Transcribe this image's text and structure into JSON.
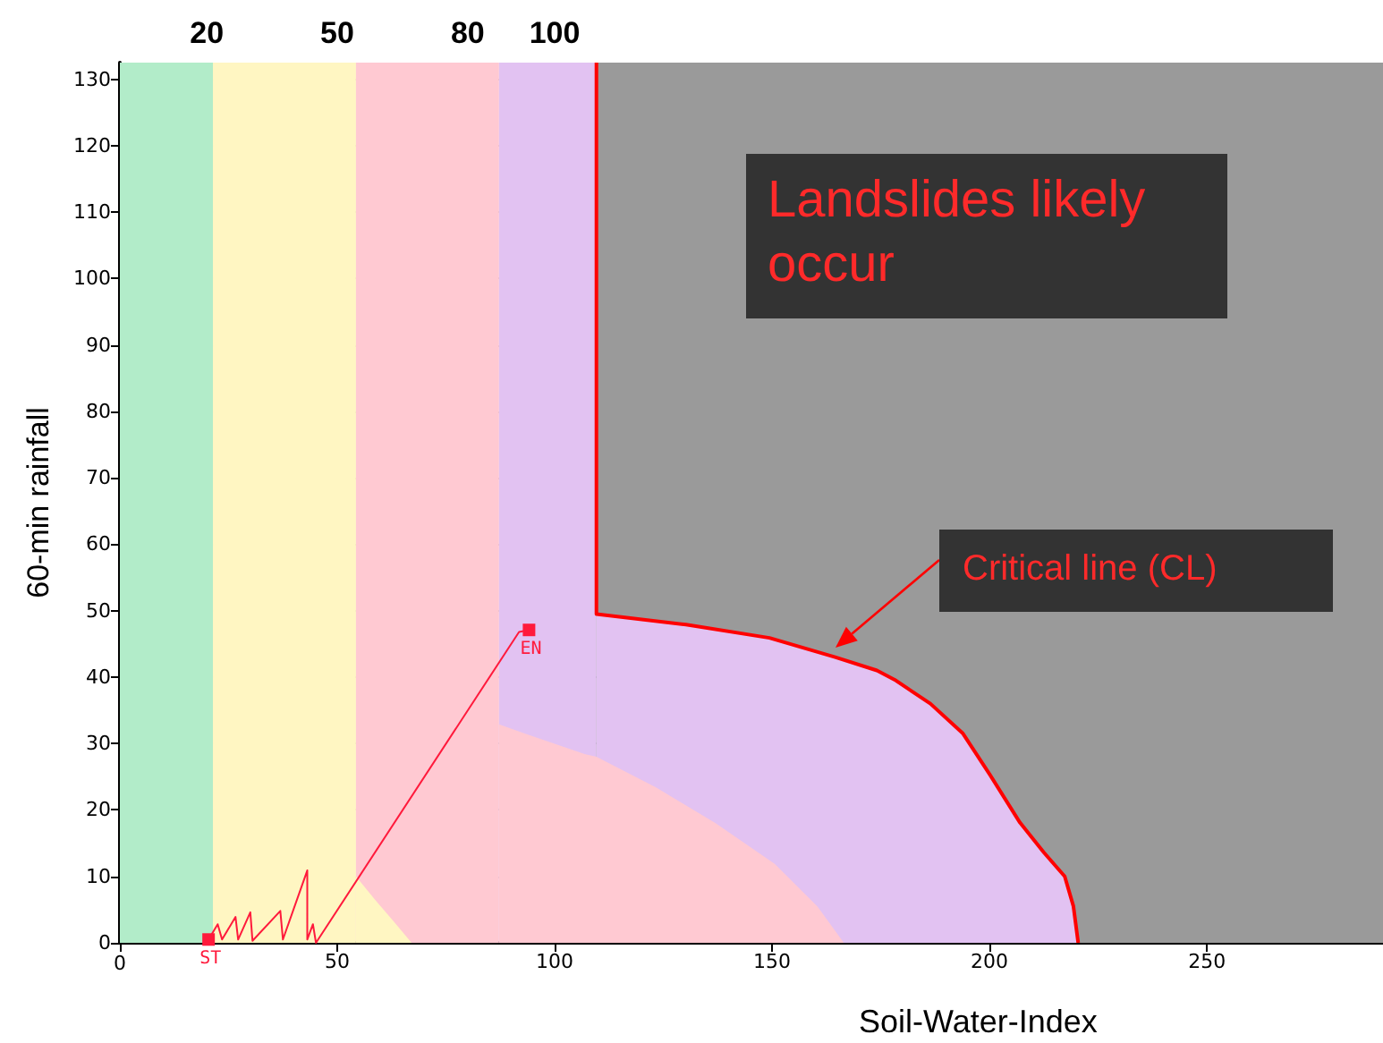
{
  "chart_data": {
    "type": "line",
    "xlabel": "Soil-Water-Index",
    "ylabel": "60-min rainfall",
    "xlim": [
      0,
      290.5
    ],
    "xticks": [
      0,
      50,
      100,
      150,
      200,
      250
    ],
    "ylim": [
      0,
      132.5
    ],
    "yticks": [
      0,
      10,
      20,
      30,
      40,
      50,
      60,
      70,
      80,
      90,
      100,
      110,
      120,
      130
    ],
    "x2lim": [
      0,
      290.5
    ],
    "x2ticks": [
      20,
      50,
      80,
      100
    ],
    "grid": true,
    "bands": [
      {
        "axis": "x",
        "from": 0,
        "to": 21.4,
        "color": "#b2ecc9"
      },
      {
        "axis": "x",
        "from": 21.4,
        "to": 54.3,
        "color": "#fff6c2"
      },
      {
        "axis": "x",
        "from": 54.3,
        "to": 87.2,
        "color": "#ffc9d2"
      },
      {
        "axis": "x",
        "from": 87.2,
        "to": 109.6,
        "color": "#e2c2f2"
      },
      {
        "axis": "x",
        "from": 109.6,
        "to": 290.5,
        "color": "#9a9a9a"
      }
    ],
    "series": [
      {
        "type": "area",
        "color": "#e2c2f2",
        "x": [
          109.6,
          130.2,
          149.4,
          164.5,
          174.1,
          178.2,
          186.4,
          193.9,
          200.1,
          207,
          212.5,
          217.3,
          219.3,
          220.4
        ],
        "values": [
          49.5,
          47.9,
          45.9,
          43,
          41,
          39.6,
          36,
          31.5,
          25.3,
          18.1,
          13.6,
          10,
          5.5,
          0
        ]
      },
      {
        "type": "area",
        "color": "#ffc9d2",
        "x": [
          87.2,
          93.1,
          106.9,
          109.6,
          123.3,
          137,
          150.6,
          160.4,
          166.5
        ],
        "values": [
          32.9,
          31.5,
          28.4,
          28,
          23.4,
          18,
          11.9,
          5.5,
          0
        ]
      },
      {
        "type": "area",
        "color": "#fff6c2",
        "x": [
          54.3,
          58.8,
          63,
          67.1
        ],
        "values": [
          10,
          6.4,
          3.2,
          0
        ]
      },
      {
        "color": "#ff0000",
        "x": [
          109.6,
          109.6,
          130.2,
          149.4,
          164.5,
          174.1,
          178.2,
          186.4,
          193.9,
          200.1,
          207,
          212.5,
          217.3,
          219.3,
          220.4
        ],
        "values": [
          132.5,
          49.5,
          47.9,
          45.9,
          43,
          41,
          39.6,
          36,
          31.5,
          25.3,
          18.1,
          13.6,
          10,
          5.5,
          0
        ]
      },
      {
        "color": "#ff1a3c",
        "x": [
          20.4,
          22.5,
          23.5,
          26.6,
          27.2,
          30,
          30.5,
          36.9,
          37.5,
          43.1,
          43.1,
          44.4,
          45.1,
          91.8,
          94.1
        ],
        "values": [
          0.5,
          2.8,
          0.5,
          3.9,
          0.5,
          4.6,
          0.3,
          4.8,
          0.5,
          10.9,
          0.5,
          2.8,
          0,
          46.8,
          47.1
        ]
      }
    ],
    "annotations": [
      "Landslides likely occur",
      "Critical line (CL)",
      {
        "text": "ST",
        "x": 20.4,
        "y": 0.5
      },
      {
        "text": "EN",
        "x": 94.1,
        "y": 47.1
      }
    ]
  }
}
